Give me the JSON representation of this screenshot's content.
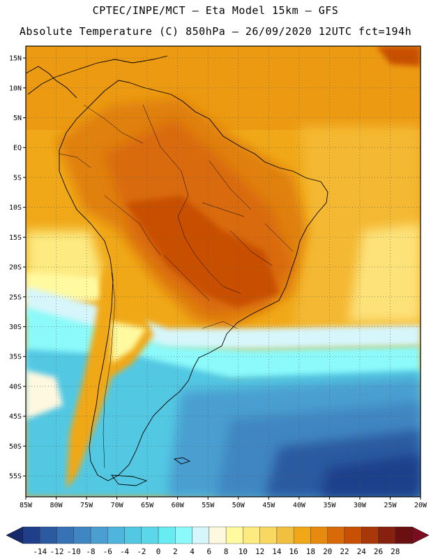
{
  "header": {
    "title_line1": "CPTEC/INPE/MCT –  Eta Model 15km – GFS",
    "title_line2": "Absolute Temperature (C) 850hPa – 26/09/2020 12UTC fct=194h"
  },
  "map": {
    "lon_range": [
      -85,
      -20
    ],
    "lat_range": [
      -58.5,
      17
    ],
    "lat_ticks": [
      {
        "value": 15,
        "label": "15N"
      },
      {
        "value": 10,
        "label": "10N"
      },
      {
        "value": 5,
        "label": "5N"
      },
      {
        "value": 0,
        "label": "EQ"
      },
      {
        "value": -5,
        "label": "5S"
      },
      {
        "value": -10,
        "label": "10S"
      },
      {
        "value": -15,
        "label": "15S"
      },
      {
        "value": -20,
        "label": "20S"
      },
      {
        "value": -25,
        "label": "25S"
      },
      {
        "value": -30,
        "label": "30S"
      },
      {
        "value": -35,
        "label": "35S"
      },
      {
        "value": -40,
        "label": "40S"
      },
      {
        "value": -45,
        "label": "45S"
      },
      {
        "value": -50,
        "label": "50S"
      },
      {
        "value": -55,
        "label": "55S"
      }
    ],
    "lon_ticks": [
      {
        "value": -85,
        "label": "85W"
      },
      {
        "value": -80,
        "label": "80W"
      },
      {
        "value": -75,
        "label": "75W"
      },
      {
        "value": -70,
        "label": "70W"
      },
      {
        "value": -65,
        "label": "65W"
      },
      {
        "value": -60,
        "label": "60W"
      },
      {
        "value": -55,
        "label": "55W"
      },
      {
        "value": -50,
        "label": "50W"
      },
      {
        "value": -45,
        "label": "45W"
      },
      {
        "value": -40,
        "label": "40W"
      },
      {
        "value": -35,
        "label": "35W"
      },
      {
        "value": -30,
        "label": "30W"
      },
      {
        "value": -25,
        "label": "25W"
      },
      {
        "value": -20,
        "label": "20W"
      }
    ],
    "grid": true
  },
  "colorbar": {
    "levels": [
      -14,
      -12,
      -10,
      -8,
      -6,
      -4,
      -2,
      0,
      2,
      4,
      6,
      8,
      10,
      12,
      14,
      16,
      18,
      20,
      22,
      24,
      26,
      28
    ],
    "colors": [
      "#1f3f8a",
      "#2c5aa0",
      "#3672b4",
      "#3f86c2",
      "#4a9fd0",
      "#4fb5dc",
      "#52c8e3",
      "#5ad8ea",
      "#66ecf2",
      "#8cfafa",
      "#d6f6fb",
      "#fff8e0",
      "#fffaa0",
      "#fdea80",
      "#f8d860",
      "#f2c040",
      "#f0a818",
      "#e88a10",
      "#d96a08",
      "#c85004",
      "#a83808",
      "#882010",
      "#6a1010"
    ],
    "low_arrow_color": "#162a6a",
    "high_arrow_color": "#7a0d20"
  }
}
